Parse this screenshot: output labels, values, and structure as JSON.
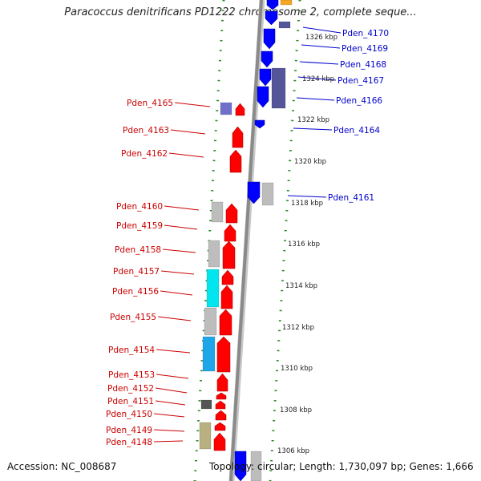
{
  "title": "Paracoccus denitrificans PD1222 chromosome 2, complete seque...",
  "footer": {
    "accession": "Accession: NC_008687",
    "topology": "Topology: circular; Length: 1,730,097 bp; Genes: 1,666"
  },
  "colors": {
    "forward_gene": "#ff0000",
    "reverse_gene": "#0000ff",
    "left_label": "#cc0000",
    "right_label": "#0000cc",
    "backbone": "#8a8a8a",
    "tick": "#228822",
    "cyan_feature": "#00e5ee",
    "skyblue_feature": "#1ea7e8",
    "gray_feature": "#bdbdbd",
    "purple_feature": "#555599",
    "tan_feature": "#b8b080",
    "dark_feature": "#555555"
  },
  "scale": {
    "unit": "kbp",
    "labels": [
      "1326 kbp",
      "1324 kbp",
      "1322 kbp",
      "1320 kbp",
      "1318 kbp",
      "1316 kbp",
      "1314 kbp",
      "1312 kbp",
      "1310 kbp",
      "1308 kbp",
      "1306 kbp"
    ]
  },
  "left_genes": [
    "Pden_4165",
    "Pden_4163",
    "Pden_4162",
    "Pden_4160",
    "Pden_4159",
    "Pden_4158",
    "Pden_4157",
    "Pden_4156",
    "Pden_4155",
    "Pden_4154",
    "Pden_4153",
    "Pden_4152",
    "Pden_4151",
    "Pden_4150",
    "Pden_4149",
    "Pden_4148"
  ],
  "right_genes": [
    "Pden_4170",
    "Pden_4169",
    "Pden_4168",
    "Pden_4167",
    "Pden_4166",
    "Pden_4164",
    "Pden_4161"
  ]
}
